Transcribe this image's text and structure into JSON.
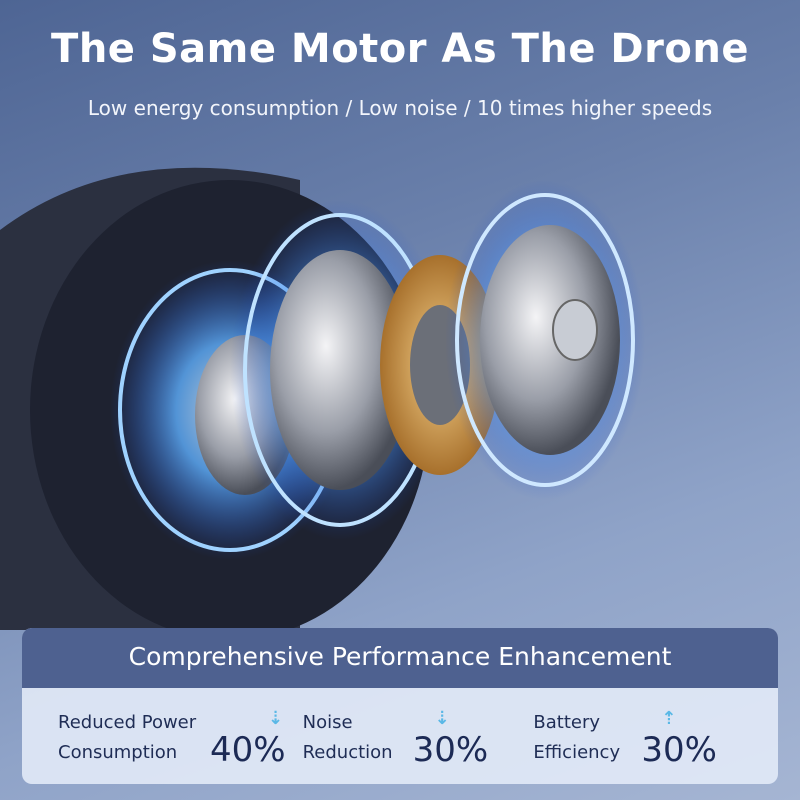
{
  "header": {
    "title": "The Same Motor As The Drone",
    "subtitle": "Low energy consumption / Low noise / 10 times higher speeds"
  },
  "panel": {
    "title": "Comprehensive Performance Enhancement",
    "stats": [
      {
        "line1": "Reduced Power",
        "line2": "Consumption",
        "value": "40%",
        "trend": "down",
        "arrow": "⇣"
      },
      {
        "line1": "Noise",
        "line2": "Reduction",
        "value": "30%",
        "trend": "down",
        "arrow": "⇣"
      },
      {
        "line1": "Battery",
        "line2": "Efficiency",
        "value": "30%",
        "trend": "up",
        "arrow": "⇡"
      }
    ]
  },
  "colors": {
    "panel_header": "#4e6190",
    "accent_glow": "#3fa0ff",
    "arrow": "#5ab8e6",
    "value_text": "#1c2a55"
  }
}
